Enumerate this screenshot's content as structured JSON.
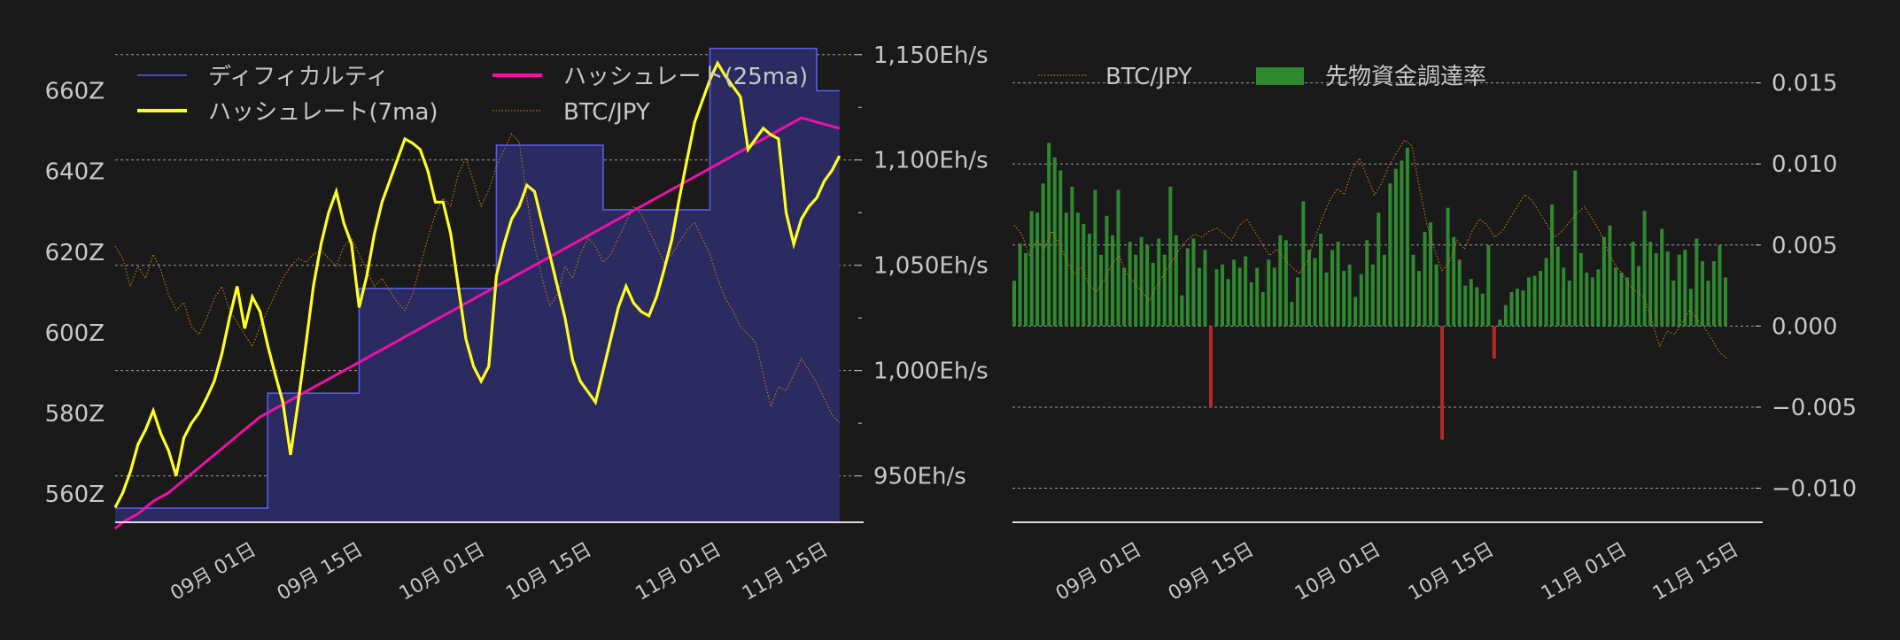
{
  "theme": {
    "background": "#1a1a1a",
    "text": "#c8c8c8",
    "grid": "#bdbdbd",
    "difficulty_line": "#5a5aee",
    "difficulty_fill": "#2b2b62",
    "hash7": "#ffff22",
    "hash25": "#ee11aa",
    "btc": "#b07a18",
    "funding_pos": "#2f8a2f",
    "funding_neg": "#b52a2a"
  },
  "x_ticks": [
    "09月 01日",
    "09月 15日",
    "10月 01日",
    "10月 15日",
    "11月 01日",
    "11月 15日"
  ],
  "chart_data": [
    {
      "type": "line",
      "x": [
        "08-18",
        "08-19",
        "08-20",
        "08-21",
        "08-22",
        "08-23",
        "08-24",
        "08-25",
        "08-26",
        "08-27",
        "08-28",
        "08-29",
        "08-30",
        "08-31",
        "09-01",
        "09-02",
        "09-03",
        "09-04",
        "09-05",
        "09-06",
        "09-07",
        "09-08",
        "09-09",
        "09-10",
        "09-11",
        "09-12",
        "09-13",
        "09-14",
        "09-15",
        "09-16",
        "09-17",
        "09-18",
        "09-19",
        "09-20",
        "09-21",
        "09-22",
        "09-23",
        "09-24",
        "09-25",
        "09-26",
        "09-27",
        "09-28",
        "09-29",
        "09-30",
        "10-01",
        "10-02",
        "10-03",
        "10-04",
        "10-05",
        "10-06",
        "10-07",
        "10-08",
        "10-09",
        "10-10",
        "10-11",
        "10-12",
        "10-13",
        "10-14",
        "10-15",
        "10-16",
        "10-17",
        "10-18",
        "10-19",
        "10-20",
        "10-21",
        "10-22",
        "10-23",
        "10-24",
        "10-25",
        "10-26",
        "10-27",
        "10-28",
        "10-29",
        "10-30",
        "10-31",
        "11-01",
        "11-02",
        "11-03",
        "11-04",
        "11-05",
        "11-06",
        "11-07",
        "11-08",
        "11-09",
        "11-10",
        "11-11",
        "11-12",
        "11-13",
        "11-14",
        "11-15",
        "11-16",
        "11-17",
        "11-18",
        "11-19",
        "11-20",
        "11-21"
      ],
      "xlim": [
        "08-18",
        "11-23"
      ],
      "left_axis": {
        "ticks": [
          "560Z",
          "580Z",
          "600Z",
          "620Z",
          "640Z",
          "660Z"
        ],
        "ylim": [
          553,
          670
        ]
      },
      "right_axis": {
        "ticks": [
          "950Eh/s",
          "1,000Eh/s",
          "1,050Eh/s",
          "1,100Eh/s",
          "1,150Eh/s"
        ],
        "ylim": [
          928,
          1152
        ]
      },
      "series": [
        {
          "name": "ディフィカルティ",
          "axis": "left",
          "style": "step-fill",
          "values": [
            556.5,
            556.5,
            556.5,
            556.5,
            556.5,
            556.5,
            556.5,
            556.5,
            556.5,
            556.5,
            556.5,
            556.5,
            556.5,
            556.5,
            556.5,
            556.5,
            556.5,
            556.5,
            556.5,
            556.5,
            585,
            585,
            585,
            585,
            585,
            585,
            585,
            585,
            585,
            585,
            585,
            585,
            611,
            611,
            611,
            611,
            611,
            611,
            611,
            611,
            611,
            611,
            611,
            611,
            611,
            611,
            611,
            611,
            611,
            611,
            646.5,
            646.5,
            646.5,
            646.5,
            646.5,
            646.5,
            646.5,
            646.5,
            646.5,
            646.5,
            646.5,
            646.5,
            646.5,
            646.5,
            630.5,
            630.5,
            630.5,
            630.5,
            630.5,
            630.5,
            630.5,
            630.5,
            630.5,
            630.5,
            630.5,
            630.5,
            630.5,
            630.5,
            670.5,
            670.5,
            670.5,
            670.5,
            670.5,
            670.5,
            670.5,
            670.5,
            670.5,
            670.5,
            670.5,
            670.5,
            670.5,
            670.5,
            660,
            660,
            660,
            660
          ]
        },
        {
          "name": "ハッシュレート(7ma)",
          "axis": "right",
          "style": "line",
          "values": [
            935,
            942,
            952,
            965,
            972,
            981,
            970,
            962,
            950,
            968,
            975,
            980,
            987,
            995,
            1008,
            1025,
            1040,
            1020,
            1035,
            1028,
            1012,
            998,
            985,
            960,
            985,
            1012,
            1040,
            1060,
            1075,
            1085,
            1070,
            1060,
            1030,
            1045,
            1065,
            1080,
            1090,
            1100,
            1110,
            1108,
            1105,
            1095,
            1080,
            1080,
            1065,
            1040,
            1015,
            1002,
            995,
            1002,
            1045,
            1060,
            1072,
            1078,
            1088,
            1085,
            1070,
            1055,
            1040,
            1025,
            1005,
            995,
            990,
            985,
            1000,
            1015,
            1030,
            1040,
            1032,
            1028,
            1026,
            1035,
            1048,
            1062,
            1082,
            1100,
            1118,
            1128,
            1138,
            1146,
            1140,
            1135,
            1130,
            1105,
            1110,
            1115,
            1112,
            1110,
            1075,
            1060,
            1072,
            1078,
            1082,
            1090,
            1095,
            1102
          ]
        },
        {
          "name": "ハッシュレート(25ma)",
          "axis": "right",
          "style": "line",
          "values": [
            925,
            928,
            930,
            932,
            935,
            938,
            940,
            942,
            945,
            948,
            951,
            954,
            957,
            960,
            963,
            966,
            969,
            972,
            975,
            978,
            980,
            982,
            984,
            986,
            988,
            990,
            992,
            994,
            996,
            998,
            1000,
            1002,
            1004,
            1006,
            1008,
            1010,
            1012,
            1014,
            1016,
            1018,
            1020,
            1022,
            1024,
            1026,
            1028,
            1030,
            1032,
            1034,
            1036,
            1038,
            1040,
            1042,
            1044,
            1046,
            1048,
            1050,
            1052,
            1054,
            1056,
            1058,
            1060,
            1062,
            1064,
            1066,
            1068,
            1070,
            1072,
            1074,
            1076,
            1078,
            1080,
            1082,
            1084,
            1086,
            1088,
            1090,
            1092,
            1094,
            1096,
            1098,
            1100,
            1102,
            1104,
            1106,
            1108,
            1110,
            1112,
            1114,
            1116,
            1118,
            1120,
            1119,
            1118,
            1117,
            1116,
            1115
          ]
        },
        {
          "name": "BTC/JPY",
          "axis": "hidden",
          "style": "dotted",
          "values": [
            60,
            57,
            50,
            55,
            52,
            58,
            54,
            48,
            44,
            46,
            40,
            38,
            42,
            47,
            50,
            44,
            41,
            38,
            35,
            40,
            44,
            48,
            52,
            55,
            57,
            56,
            58,
            59,
            57,
            55,
            60,
            62,
            58,
            54,
            50,
            52,
            49,
            46,
            44,
            48,
            55,
            62,
            68,
            72,
            70,
            78,
            82,
            76,
            70,
            74,
            80,
            84,
            88,
            86,
            72,
            60,
            52,
            45,
            48,
            55,
            52,
            58,
            62,
            60,
            56,
            58,
            62,
            66,
            70,
            68,
            64,
            60,
            56,
            58,
            61,
            64,
            66,
            62,
            58,
            52,
            47,
            44,
            40,
            38,
            36,
            28,
            20,
            25,
            24,
            28,
            32,
            29,
            26,
            22,
            18,
            16
          ]
        }
      ]
    },
    {
      "type": "bar",
      "right_axis": {
        "ticks": [
          "0.015",
          "0.010",
          "0.005",
          "0.000",
          "−0.005",
          "−0.010"
        ],
        "ylim": [
          -0.0121,
          0.017
        ]
      },
      "series": [
        {
          "name": "先物資金調達率",
          "style": "bar",
          "values": [
            0.0028,
            0.0051,
            0.0045,
            0.0071,
            0.007,
            0.0088,
            0.0113,
            0.0104,
            0.0096,
            0.007,
            0.0086,
            0.007,
            0.0063,
            0.0057,
            0.0084,
            0.0044,
            0.0068,
            0.0056,
            0.0084,
            0.0036,
            0.0052,
            0.0044,
            0.0055,
            0.005,
            0.0039,
            0.0054,
            0.0044,
            0.0086,
            0.0056,
            0.0019,
            0.0048,
            0.0054,
            0.0036,
            0.0047,
            -0.005,
            0.0035,
            0.0038,
            0.0029,
            0.0041,
            0.0036,
            0.0043,
            0.0027,
            0.0036,
            0.0021,
            0.0041,
            0.0036,
            0.0056,
            0.0053,
            0.0015,
            0.003,
            0.0077,
            0.0047,
            0.0042,
            0.0057,
            0.0033,
            0.0047,
            0.0052,
            0.0034,
            0.0038,
            0.0018,
            0.0032,
            0.0053,
            0.0038,
            0.007,
            0.0044,
            0.0088,
            0.0097,
            0.0102,
            0.011,
            0.0044,
            0.0034,
            0.0058,
            0.0064,
            0.0038,
            -0.007,
            0.0073,
            0.0055,
            0.0041,
            0.0025,
            0.0029,
            0.0024,
            0.002,
            0.005,
            -0.002,
            0.0004,
            0.0013,
            0.0021,
            0.0023,
            0.0022,
            0.003,
            0.0031,
            0.0034,
            0.0042,
            0.0075,
            0.0049,
            0.0036,
            0.0028,
            0.0096,
            0.0045,
            0.0033,
            0.003,
            0.0035,
            0.0055,
            0.0062,
            0.0036,
            0.0033,
            0.003,
            0.0052,
            0.0037,
            0.0071,
            0.0052,
            0.0045,
            0.006,
            0.0046,
            0.0028,
            0.0044,
            0.0047,
            0.0023,
            0.0054,
            0.004,
            0.0028,
            0.004,
            0.005,
            0.003
          ]
        },
        {
          "name": "BTC/JPY",
          "style": "dotted",
          "values": [
            60,
            57,
            50,
            55,
            52,
            58,
            54,
            48,
            44,
            46,
            40,
            38,
            42,
            47,
            50,
            44,
            41,
            38,
            35,
            40,
            44,
            48,
            52,
            55,
            57,
            56,
            58,
            59,
            57,
            55,
            60,
            62,
            58,
            54,
            50,
            52,
            49,
            46,
            44,
            48,
            55,
            62,
            68,
            72,
            70,
            78,
            82,
            76,
            70,
            74,
            80,
            84,
            88,
            86,
            72,
            60,
            52,
            45,
            48,
            55,
            52,
            58,
            62,
            60,
            56,
            58,
            62,
            66,
            70,
            68,
            64,
            60,
            56,
            58,
            61,
            64,
            66,
            62,
            58,
            52,
            47,
            44,
            40,
            38,
            36,
            28,
            20,
            25,
            24,
            28,
            32,
            29,
            26,
            22,
            18,
            16
          ]
        }
      ]
    }
  ]
}
